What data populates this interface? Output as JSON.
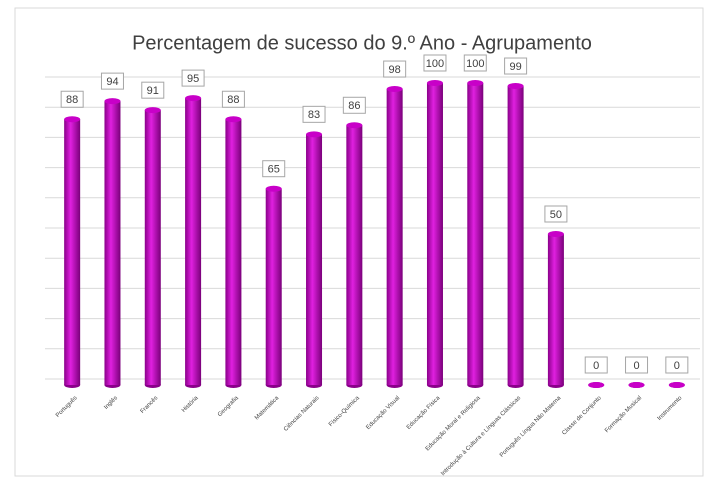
{
  "chart_data": {
    "type": "bar",
    "title": "Percentagem de sucesso do 9.º Ano - Agrupamento",
    "categories": [
      "Português",
      "Inglês",
      "Francês",
      "História",
      "Geografia",
      "Matemática",
      "Ciências Naturais",
      "Físico-Química",
      "Educação Visual",
      "Educação Física",
      "Educação Moral e Religiosa",
      "Introdução à Cultura e Línguas Clássicas",
      "Português Língua Não Materna",
      "Classe de Conjunto",
      "Formação Musical",
      "Instrumento"
    ],
    "values": [
      88,
      94,
      91,
      95,
      88,
      65,
      83,
      86,
      98,
      100,
      100,
      99,
      50,
      0,
      0,
      0
    ],
    "color": "#c800c8",
    "ylim": [
      0,
      100
    ],
    "yticks": [
      0,
      10,
      20,
      30,
      40,
      50,
      60,
      70,
      80,
      90,
      100
    ],
    "grid": true
  }
}
